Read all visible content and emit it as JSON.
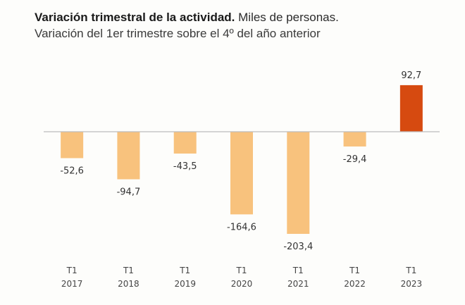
{
  "chart_data": {
    "type": "bar",
    "title": "Variación trimestral de la actividad.",
    "title_suffix": "Miles de personas.",
    "subtitle": "Variación del 1er trimestre sobre el 4º del año anterior",
    "categories": [
      {
        "quarter": "T1",
        "year": "2017"
      },
      {
        "quarter": "T1",
        "year": "2018"
      },
      {
        "quarter": "T1",
        "year": "2019"
      },
      {
        "quarter": "T1",
        "year": "2020"
      },
      {
        "quarter": "T1",
        "year": "2021"
      },
      {
        "quarter": "T1",
        "year": "2022"
      },
      {
        "quarter": "T1",
        "year": "2023"
      }
    ],
    "values": [
      -52.6,
      -94.7,
      -43.5,
      -164.6,
      -203.4,
      -29.4,
      92.7
    ],
    "value_labels": [
      "-52,6",
      "-94,7",
      "-43,5",
      "-164,6",
      "-203,4",
      "-29,4",
      "92,7"
    ],
    "colors": {
      "negative": "#f8c27d",
      "highlight": "#d64a10",
      "axis": "#bdbdbd"
    },
    "highlight_index": 6,
    "xlabel": "",
    "ylabel": "",
    "ylim": [
      -203.4,
      92.7
    ],
    "grid": false,
    "legend": "none"
  }
}
